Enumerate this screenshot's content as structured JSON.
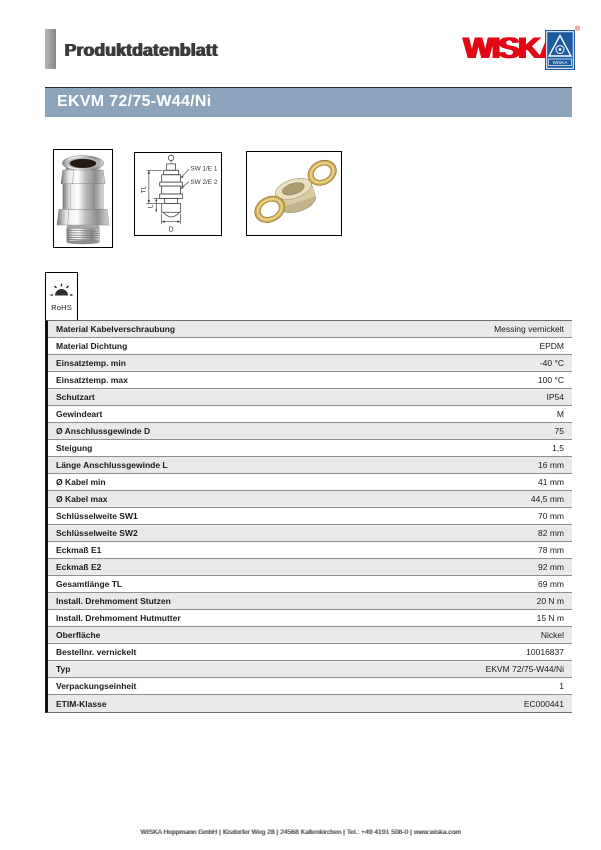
{
  "header": {
    "doc_title": "Produktdatenblatt",
    "brand": "WISKA",
    "emblem_text": "WISKA",
    "registered_mark": "®"
  },
  "title_bar": {
    "product_name": "EKVM 72/75-W44/Ni"
  },
  "images": {
    "drawing_labels": {
      "sw1": "SW 1/E 1",
      "sw2": "SW 2/E 2",
      "tl": "TL",
      "l": "L",
      "d": "D"
    }
  },
  "rohs": {
    "label": "RoHS"
  },
  "colors": {
    "brand_red": "#e30613",
    "emblem_blue": "#1d5a9e",
    "title_bar_bg": "#8ba4bb",
    "row_alt_bg": "#e9e9e9"
  },
  "table": {
    "rows": [
      {
        "label": "Material Kabelverschraubung",
        "value": "Messing vernickelt"
      },
      {
        "label": "Material Dichtung",
        "value": "EPDM"
      },
      {
        "label": "Einsatztemp. min",
        "value": "-40 °C"
      },
      {
        "label": "Einsatztemp. max",
        "value": "100 °C"
      },
      {
        "label": "Schutzart",
        "value": "IP54"
      },
      {
        "label": "Gewindeart",
        "value": "M"
      },
      {
        "label": "Ø Anschlussgewinde D",
        "value": "75"
      },
      {
        "label": "Steigung",
        "value": "1,5"
      },
      {
        "label": "Länge Anschlussgewinde L",
        "value": "16 mm"
      },
      {
        "label": "Ø Kabel min",
        "value": "41 mm"
      },
      {
        "label": "Ø Kabel max",
        "value": "44,5 mm"
      },
      {
        "label": "Schlüsselweite SW1",
        "value": "70 mm"
      },
      {
        "label": "Schlüsselweite SW2",
        "value": "82 mm"
      },
      {
        "label": "Eckmaß E1",
        "value": "78 mm"
      },
      {
        "label": "Eckmaß E2",
        "value": "92 mm"
      },
      {
        "label": "Gesamtlänge TL",
        "value": "69 mm"
      },
      {
        "label": "Install. Drehmoment Stutzen",
        "value": "20 N m"
      },
      {
        "label": "Install. Drehmoment Hutmutter",
        "value": "15 N m"
      },
      {
        "label": "Oberfläche",
        "value": "Nickel"
      },
      {
        "label": "Bestellnr. vernickelt",
        "value": "10016837"
      },
      {
        "label": "Typ",
        "value": "EKVM 72/75-W44/Ni"
      },
      {
        "label": "Verpackungseinheit",
        "value": "1"
      },
      {
        "label": "ETIM-Klasse",
        "value": "EC000441"
      }
    ]
  },
  "footer": {
    "text": "WISKA Hoppmann GmbH | Kisdorfer Weg 28 | 24568 Kaltenkirchen | Tel.: +49 4191 508-0 | www.wiska.com"
  }
}
